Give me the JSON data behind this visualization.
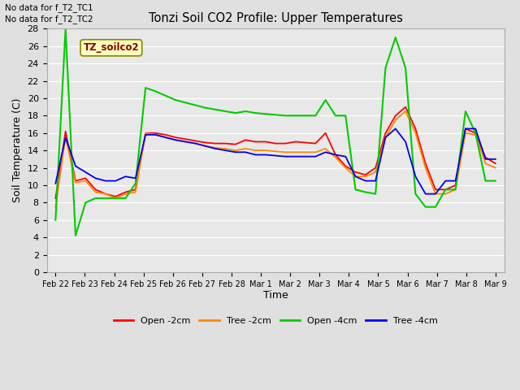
{
  "title": "Tonzi Soil CO2 Profile: Upper Temperatures",
  "xlabel": "Time",
  "ylabel": "Soil Temperature (C)",
  "note_line1": "No data for f_T2_TC1",
  "note_line2": "No data for f_T2_TC2",
  "watermark": "TZ_soilco2",
  "ylim": [
    0,
    28
  ],
  "yticks": [
    0,
    2,
    4,
    6,
    8,
    10,
    12,
    14,
    16,
    18,
    20,
    22,
    24,
    26,
    28
  ],
  "legend": [
    "Open -2cm",
    "Tree -2cm",
    "Open -4cm",
    "Tree -4cm"
  ],
  "legend_colors": [
    "#ff0000",
    "#ff8800",
    "#00cc00",
    "#0000ee"
  ],
  "xtick_labels": [
    "Feb 22",
    "Feb 23",
    "Feb 24",
    "Feb 25",
    "Feb 26",
    "Feb 27",
    "Feb 28",
    "Mar 1",
    "Mar 2",
    "Mar 3",
    "Mar 4",
    "Mar 5",
    "Mar 6",
    "Mar 7",
    "Mar 8",
    "Mar 9"
  ],
  "x_days": [
    0,
    1,
    2,
    3,
    4,
    5,
    6,
    7,
    8,
    9,
    10,
    11,
    12,
    13,
    14,
    15
  ],
  "open_2cm": [
    8.5,
    16.2,
    10.5,
    10.8,
    9.5,
    9.0,
    8.7,
    9.2,
    9.5,
    16.0,
    16.0,
    15.8,
    15.5,
    15.3,
    15.1,
    14.9,
    14.8,
    14.8,
    14.7,
    15.2,
    15.0,
    15.0,
    14.8,
    14.8,
    15.0,
    14.9,
    14.8,
    16.0,
    13.5,
    12.2,
    11.5,
    11.2,
    12.0,
    16.0,
    18.0,
    19.0,
    16.5,
    12.5,
    9.5,
    9.5,
    10.0,
    16.5,
    16.0,
    13.2,
    12.5
  ],
  "tree_2cm": [
    7.5,
    15.5,
    10.3,
    10.5,
    9.2,
    9.0,
    8.5,
    9.0,
    9.2,
    16.0,
    15.8,
    15.5,
    15.2,
    15.0,
    14.8,
    14.5,
    14.3,
    14.2,
    14.0,
    14.2,
    14.0,
    14.0,
    13.9,
    13.8,
    13.8,
    13.8,
    13.8,
    14.2,
    13.2,
    12.0,
    11.0,
    11.0,
    11.5,
    15.5,
    17.5,
    18.5,
    16.0,
    12.0,
    9.0,
    9.0,
    9.5,
    16.0,
    15.8,
    12.5,
    12.0
  ],
  "open_4cm": [
    6.0,
    28.0,
    4.2,
    8.0,
    8.5,
    8.5,
    8.5,
    8.5,
    10.2,
    21.2,
    20.8,
    20.3,
    19.8,
    19.5,
    19.2,
    18.9,
    18.7,
    18.5,
    18.3,
    18.5,
    18.3,
    18.2,
    18.1,
    18.0,
    18.0,
    18.0,
    18.0,
    19.8,
    18.0,
    18.0,
    9.5,
    9.2,
    9.0,
    23.5,
    27.0,
    23.5,
    9.0,
    7.5,
    7.5,
    9.5,
    9.5,
    18.5,
    16.0,
    10.5,
    10.5
  ],
  "tree_4cm": [
    10.2,
    15.5,
    12.2,
    11.5,
    10.8,
    10.5,
    10.5,
    11.0,
    10.8,
    15.8,
    15.8,
    15.5,
    15.2,
    15.0,
    14.8,
    14.5,
    14.2,
    14.0,
    13.8,
    13.8,
    13.5,
    13.5,
    13.4,
    13.3,
    13.3,
    13.3,
    13.3,
    13.8,
    13.5,
    13.3,
    11.0,
    10.5,
    10.5,
    15.5,
    16.5,
    15.0,
    11.0,
    9.0,
    9.0,
    10.5,
    10.5,
    16.5,
    16.5,
    13.0,
    13.0
  ]
}
